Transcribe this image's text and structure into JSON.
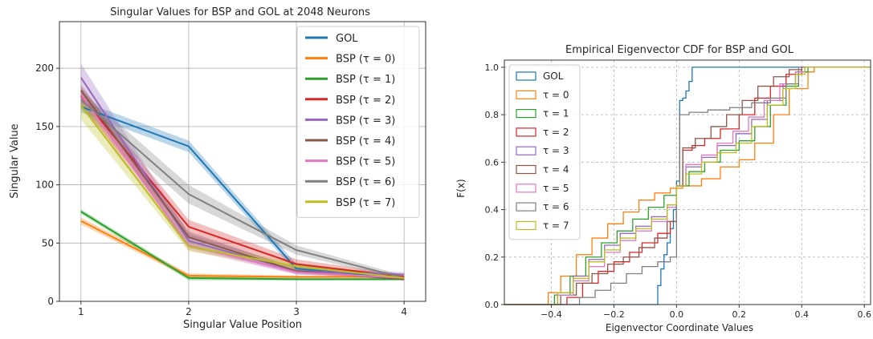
{
  "chart_data": [
    {
      "type": "line",
      "title": "Singular Values for BSP and GOL at 2048 Neurons",
      "xlabel": "Singular Value Position",
      "ylabel": "Singular Value",
      "x": [
        1,
        2,
        3,
        4
      ],
      "xlim": [
        0.8,
        4.2
      ],
      "ylim": [
        0,
        240
      ],
      "xticks": [
        "1",
        "2",
        "3",
        "4"
      ],
      "yticks": [
        "0",
        "50",
        "100",
        "150",
        "200"
      ],
      "grid": true,
      "legend": "top-right",
      "bands": "shaded confidence band around each line",
      "series": [
        {
          "name": "GOL",
          "color": "#1f77b4",
          "values": [
            167,
            133,
            28,
            20
          ],
          "lower": [
            162,
            128,
            25,
            18
          ],
          "upper": [
            172,
            138,
            32,
            22
          ]
        },
        {
          "name": "BSP (τ = 0)",
          "color": "#ff7f0e",
          "values": [
            69,
            22,
            21,
            21
          ],
          "lower": [
            66,
            20,
            20,
            20
          ],
          "upper": [
            72,
            24,
            22,
            22
          ]
        },
        {
          "name": "BSP (τ = 1)",
          "color": "#2ca02c",
          "values": [
            77,
            20,
            19,
            19
          ],
          "lower": [
            75,
            18,
            18,
            18
          ],
          "upper": [
            79,
            22,
            20,
            20
          ]
        },
        {
          "name": "BSP (τ = 2)",
          "color": "#d62728",
          "values": [
            176,
            64,
            32,
            21
          ],
          "lower": [
            168,
            55,
            28,
            19
          ],
          "upper": [
            184,
            70,
            36,
            23
          ]
        },
        {
          "name": "BSP (τ = 3)",
          "color": "#9467bd",
          "values": [
            192,
            52,
            26,
            23
          ],
          "lower": [
            182,
            46,
            23,
            21
          ],
          "upper": [
            204,
            58,
            29,
            25
          ]
        },
        {
          "name": "BSP (τ = 4)",
          "color": "#8c564b",
          "values": [
            181,
            55,
            26,
            19
          ],
          "lower": [
            176,
            50,
            24,
            18
          ],
          "upper": [
            186,
            60,
            28,
            20
          ]
        },
        {
          "name": "BSP (τ = 5)",
          "color": "#e377c2",
          "values": [
            177,
            48,
            25,
            20
          ],
          "lower": [
            171,
            44,
            23,
            19
          ],
          "upper": [
            183,
            52,
            27,
            21
          ]
        },
        {
          "name": "BSP (τ = 6)",
          "color": "#7f7f7f",
          "values": [
            173,
            92,
            44,
            20
          ],
          "lower": [
            165,
            84,
            40,
            18
          ],
          "upper": [
            181,
            100,
            48,
            22
          ]
        },
        {
          "name": "BSP (τ = 7)",
          "color": "#bcbd22",
          "values": [
            168,
            47,
            30,
            20
          ],
          "lower": [
            156,
            43,
            27,
            18
          ],
          "upper": [
            178,
            51,
            33,
            22
          ]
        }
      ]
    },
    {
      "type": "line",
      "title": "Empirical Eigenvector CDF for BSP and GOL",
      "xlabel": "Eigenvector Coordinate Values",
      "ylabel": "F(x)",
      "xlim": [
        -0.55,
        0.62
      ],
      "ylim": [
        0,
        1.03
      ],
      "xticks": [
        "−0.4",
        "−0.2",
        "0.0",
        "0.2",
        "0.4",
        "0.6"
      ],
      "yticks": [
        "0.0",
        "0.2",
        "0.4",
        "0.6",
        "0.8",
        "1.0"
      ],
      "grid": "dashed",
      "legend": "top-left",
      "step": true,
      "series": [
        {
          "name": "GOL",
          "color": "#1f77b4",
          "x": [
            -0.07,
            -0.06,
            -0.05,
            -0.04,
            -0.03,
            -0.02,
            -0.01,
            0.0,
            0.01,
            0.02,
            0.03,
            0.04,
            0.05,
            0.06,
            0.07
          ],
          "y": [
            0.0,
            0.08,
            0.15,
            0.21,
            0.26,
            0.32,
            0.4,
            0.52,
            0.86,
            0.87,
            0.9,
            0.94,
            1.0,
            1.0,
            1.0
          ]
        },
        {
          "name": "τ = 0",
          "color": "#ff7f0e",
          "x": [
            -0.46,
            -0.41,
            -0.37,
            -0.32,
            -0.27,
            -0.22,
            -0.17,
            -0.12,
            -0.07,
            -0.02,
            0.02,
            0.08,
            0.14,
            0.2,
            0.25,
            0.31,
            0.36,
            0.42,
            0.44
          ],
          "y": [
            0.0,
            0.05,
            0.12,
            0.21,
            0.28,
            0.34,
            0.39,
            0.44,
            0.47,
            0.49,
            0.5,
            0.53,
            0.58,
            0.61,
            0.68,
            0.8,
            0.91,
            0.98,
            1.0
          ]
        },
        {
          "name": "τ = 1",
          "color": "#2ca02c",
          "x": [
            -0.44,
            -0.39,
            -0.34,
            -0.29,
            -0.24,
            -0.19,
            -0.14,
            -0.09,
            -0.04,
            0.0,
            0.04,
            0.09,
            0.14,
            0.2,
            0.25,
            0.3,
            0.35,
            0.39,
            0.42
          ],
          "y": [
            0.0,
            0.04,
            0.12,
            0.2,
            0.26,
            0.31,
            0.36,
            0.41,
            0.46,
            0.5,
            0.56,
            0.6,
            0.65,
            0.69,
            0.75,
            0.84,
            0.92,
            0.98,
            1.0
          ]
        },
        {
          "name": "τ = 2",
          "color": "#d62728",
          "x": [
            -0.4,
            -0.35,
            -0.3,
            -0.25,
            -0.2,
            -0.15,
            -0.11,
            -0.06,
            -0.02,
            0.0,
            0.02,
            0.05,
            0.09,
            0.14,
            0.2,
            0.25,
            0.3,
            0.35,
            0.4
          ],
          "y": [
            0.0,
            0.03,
            0.09,
            0.14,
            0.18,
            0.22,
            0.26,
            0.3,
            0.35,
            0.5,
            0.65,
            0.67,
            0.7,
            0.74,
            0.8,
            0.87,
            0.92,
            0.97,
            1.0
          ]
        },
        {
          "name": "τ = 3",
          "color": "#9467bd",
          "x": [
            -0.43,
            -0.38,
            -0.33,
            -0.28,
            -0.23,
            -0.18,
            -0.13,
            -0.08,
            -0.03,
            0.0,
            0.03,
            0.08,
            0.13,
            0.19,
            0.24,
            0.29,
            0.34,
            0.38,
            0.41
          ],
          "y": [
            0.0,
            0.05,
            0.12,
            0.19,
            0.25,
            0.3,
            0.33,
            0.37,
            0.42,
            0.5,
            0.58,
            0.62,
            0.67,
            0.72,
            0.78,
            0.86,
            0.93,
            0.98,
            1.0
          ]
        },
        {
          "name": "τ = 4",
          "color": "#8c564b",
          "x": [
            -0.42,
            -0.37,
            -0.32,
            -0.27,
            -0.22,
            -0.17,
            -0.12,
            -0.07,
            -0.03,
            0.0,
            0.02,
            0.06,
            0.11,
            0.16,
            0.21,
            0.26,
            0.31,
            0.36,
            0.4
          ],
          "y": [
            0.0,
            0.04,
            0.09,
            0.13,
            0.17,
            0.2,
            0.24,
            0.28,
            0.35,
            0.5,
            0.66,
            0.7,
            0.75,
            0.8,
            0.86,
            0.92,
            0.96,
            0.99,
            1.0
          ]
        },
        {
          "name": "τ = 5",
          "color": "#e377c2",
          "x": [
            -0.43,
            -0.38,
            -0.33,
            -0.28,
            -0.23,
            -0.18,
            -0.13,
            -0.08,
            -0.03,
            0.0,
            0.03,
            0.08,
            0.13,
            0.18,
            0.23,
            0.28,
            0.33,
            0.38,
            0.41
          ],
          "y": [
            0.0,
            0.04,
            0.1,
            0.16,
            0.22,
            0.27,
            0.31,
            0.35,
            0.41,
            0.5,
            0.59,
            0.63,
            0.68,
            0.73,
            0.79,
            0.86,
            0.93,
            0.98,
            1.0
          ]
        },
        {
          "name": "τ = 6",
          "color": "#7f7f7f",
          "x": [
            -0.36,
            -0.31,
            -0.26,
            -0.21,
            -0.16,
            -0.11,
            -0.06,
            -0.02,
            0.0,
            0.01,
            0.04,
            0.1,
            0.17,
            0.24,
            0.3,
            0.35,
            0.39
          ],
          "y": [
            0.0,
            0.03,
            0.06,
            0.09,
            0.13,
            0.16,
            0.18,
            0.2,
            0.5,
            0.8,
            0.81,
            0.82,
            0.83,
            0.85,
            0.87,
            0.93,
            1.0
          ]
        },
        {
          "name": "τ = 7",
          "color": "#bcbd22",
          "x": [
            -0.43,
            -0.38,
            -0.33,
            -0.28,
            -0.23,
            -0.18,
            -0.13,
            -0.08,
            -0.03,
            0.0,
            0.03,
            0.08,
            0.13,
            0.19,
            0.24,
            0.29,
            0.34,
            0.38,
            0.41
          ],
          "y": [
            0.0,
            0.05,
            0.11,
            0.18,
            0.23,
            0.28,
            0.32,
            0.36,
            0.42,
            0.5,
            0.55,
            0.6,
            0.64,
            0.68,
            0.75,
            0.84,
            0.91,
            0.97,
            1.0
          ]
        }
      ]
    }
  ]
}
